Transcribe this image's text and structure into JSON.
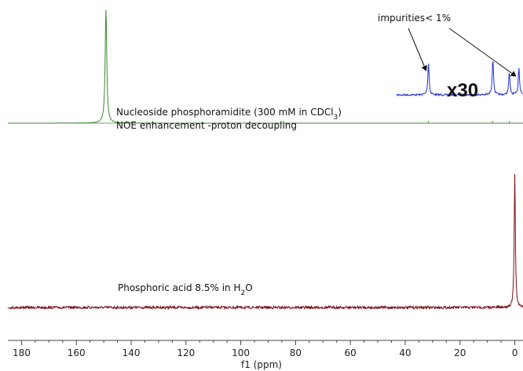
{
  "chart_data": {
    "type": "line",
    "xlabel": "f1 (ppm)",
    "xlim": [
      185,
      -3
    ],
    "x_ticks": [
      180,
      160,
      140,
      120,
      100,
      80,
      60,
      40,
      20,
      0
    ],
    "tick_labels": [
      "180",
      "160",
      "140",
      "120",
      "100",
      "80",
      "60",
      "40",
      "20",
      "0"
    ],
    "grid": false,
    "series": [
      {
        "name": "",
        "color": "#3b8a2e",
        "label_lines": [
          "Nucleoside phosphoramidite (300 mM in CDCl",
          "3",
          ")"
        ],
        "label_line2": "NOE enhancement -proton decoupling",
        "peaks": [
          {
            "x": 149.2,
            "relative_height": 1.0
          }
        ]
      },
      {
        "name": "",
        "color": "#1f2fd6",
        "multiplier": "x30",
        "x_range": [
          43,
          -3
        ],
        "peaks": [
          {
            "x": 31.5,
            "relative_height": 0.48
          },
          {
            "x": 8.0,
            "relative_height": 0.55
          },
          {
            "x": 2.0,
            "relative_height": 0.34
          },
          {
            "x": -1.5,
            "relative_height": 0.42
          }
        ]
      },
      {
        "name": "",
        "color": "#7a0f14",
        "label_text": "Phosphoric acid 8.5% in H",
        "label_sub": "2",
        "label_end": "O",
        "peaks": [
          {
            "x": 0.0,
            "relative_height": 1.0
          }
        ]
      }
    ],
    "annotations": [
      {
        "text": "impurities< 1%",
        "arrows_to": [
          31.5,
          -1.5
        ]
      }
    ]
  }
}
